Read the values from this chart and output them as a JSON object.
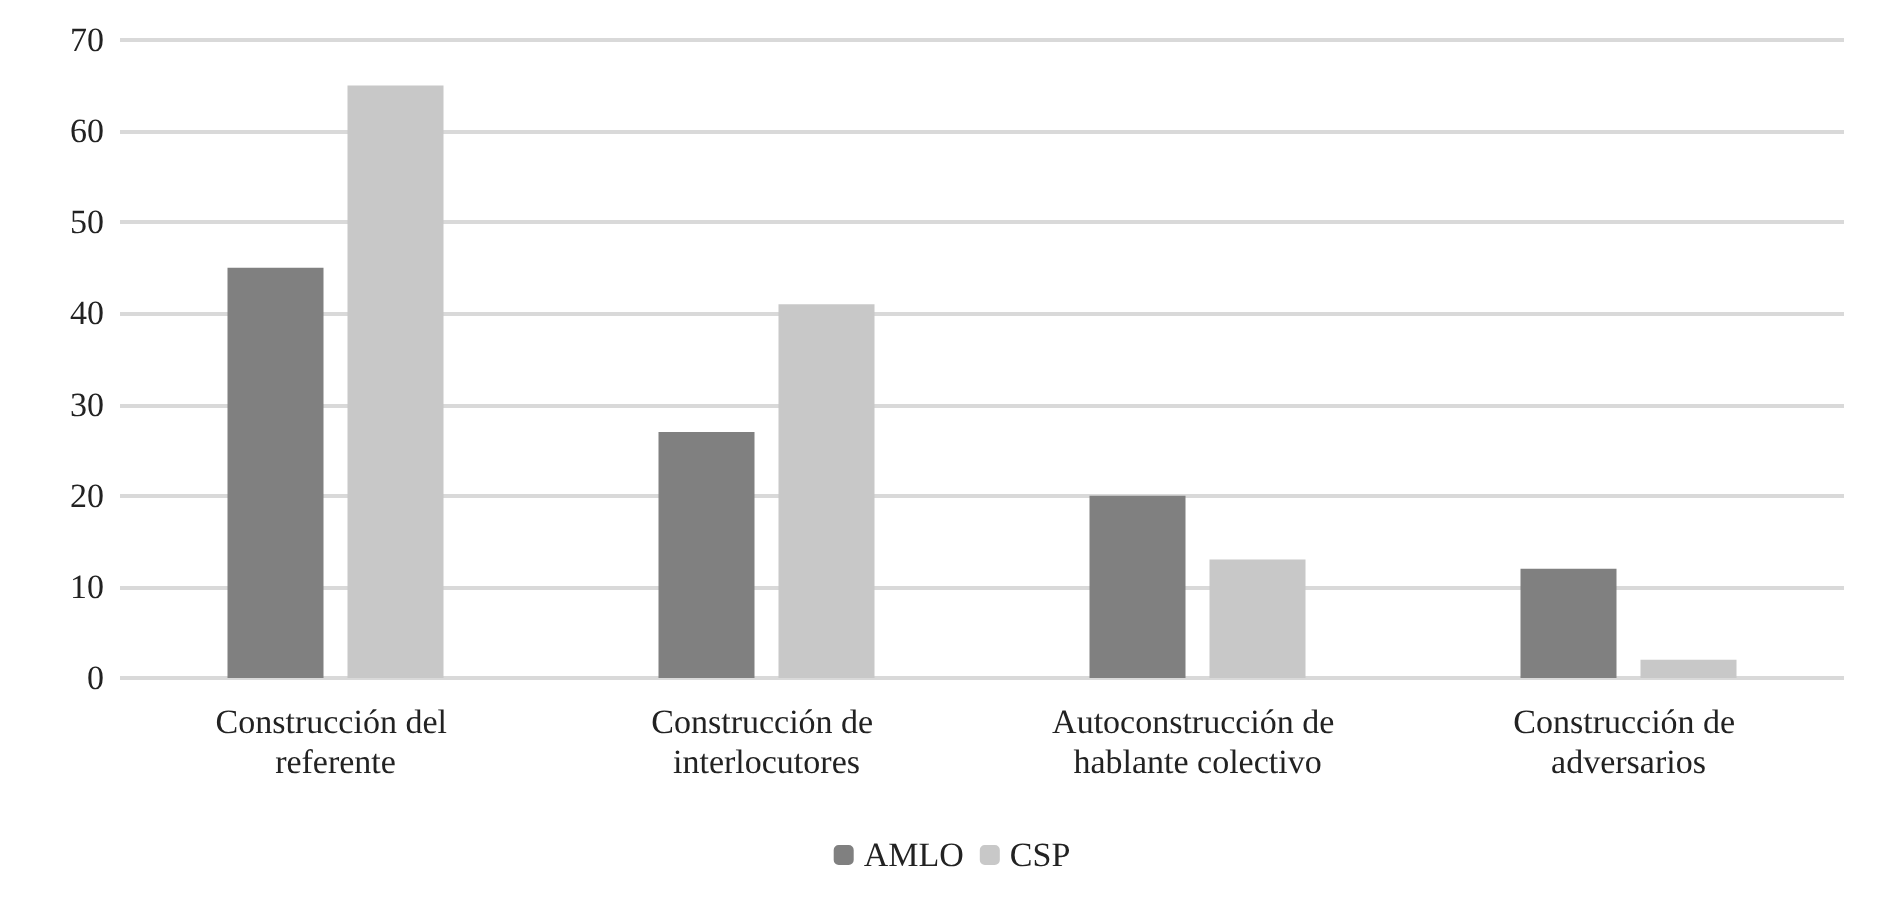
{
  "chart_data": {
    "type": "bar",
    "categories": [
      "Construcción del referente",
      "Construcción de interlocutores",
      "Autoconstrucción de hablante colectivo",
      "Construcción de adversarios"
    ],
    "series": [
      {
        "name": "AMLO",
        "color": "#808080",
        "values": [
          45,
          27,
          20,
          12
        ]
      },
      {
        "name": "CSP",
        "color": "#c8c8c8",
        "values": [
          65,
          41,
          13,
          2
        ]
      }
    ],
    "ylim": [
      0,
      70
    ],
    "yticks": [
      0,
      10,
      20,
      30,
      40,
      50,
      60,
      70
    ],
    "grid": "y",
    "legend": "bottom"
  }
}
